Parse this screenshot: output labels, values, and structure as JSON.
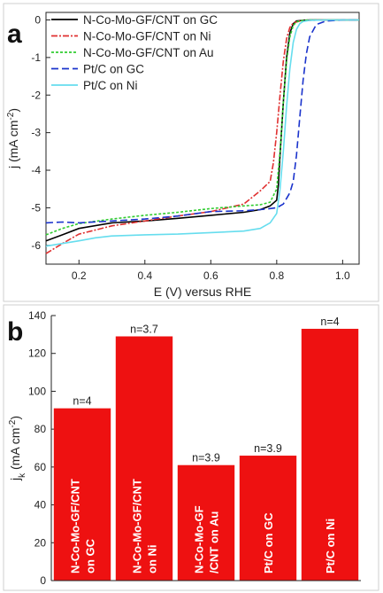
{
  "chart_data": [
    {
      "panel": "a",
      "type": "line",
      "xlabel": "E (V) versus RHE",
      "ylabel_main": "j (mA cm",
      "ylabel_sup": "-2",
      "ylabel_end": ")",
      "xlim": [
        0.1,
        1.05
      ],
      "ylim": [
        -6.5,
        0.2
      ],
      "xticks": [
        0.2,
        0.4,
        0.6,
        0.8,
        1.0
      ],
      "xtick_labels": [
        "0.2",
        "0.4",
        "0.6",
        "0.8",
        "1.0"
      ],
      "yticks": [
        0,
        -1,
        -2,
        -3,
        -4,
        -5,
        -6
      ],
      "ytick_labels": [
        "0",
        "-1",
        "-2",
        "-3",
        "-4",
        "-5",
        "-6"
      ],
      "legend_position": "top-left",
      "series": [
        {
          "name": "N-Co-Mo-GF/CNT on GC",
          "color": "#000000",
          "dash": "",
          "x": [
            0.1,
            0.15,
            0.2,
            0.3,
            0.4,
            0.5,
            0.6,
            0.7,
            0.75,
            0.78,
            0.8,
            0.805,
            0.81,
            0.82,
            0.83,
            0.84,
            0.85,
            0.86,
            0.88,
            0.9,
            0.95,
            1.0,
            1.05
          ],
          "y": [
            -5.88,
            -5.72,
            -5.55,
            -5.4,
            -5.35,
            -5.28,
            -5.2,
            -5.12,
            -5.05,
            -4.95,
            -4.8,
            -4.4,
            -3.6,
            -2.2,
            -1.0,
            -0.35,
            -0.1,
            -0.03,
            -0.01,
            0,
            0,
            0,
            0
          ]
        },
        {
          "name": "N-Co-Mo-GF/CNT on Ni",
          "color": "#e03030",
          "dash": "7 2 2 2",
          "x": [
            0.1,
            0.15,
            0.2,
            0.3,
            0.4,
            0.5,
            0.6,
            0.7,
            0.75,
            0.78,
            0.79,
            0.8,
            0.81,
            0.82,
            0.83,
            0.84,
            0.85,
            0.87,
            0.9,
            0.95,
            1.0,
            1.05
          ],
          "y": [
            -6.22,
            -5.95,
            -5.7,
            -5.48,
            -5.35,
            -5.22,
            -5.1,
            -4.9,
            -4.55,
            -4.3,
            -3.8,
            -3.0,
            -2.0,
            -1.1,
            -0.5,
            -0.2,
            -0.08,
            -0.03,
            -0.01,
            0,
            0,
            0
          ]
        },
        {
          "name": "N-Co-Mo-GF/CNT on Au",
          "color": "#30cc30",
          "dash": "3 2",
          "x": [
            0.1,
            0.15,
            0.2,
            0.3,
            0.4,
            0.5,
            0.6,
            0.7,
            0.75,
            0.78,
            0.8,
            0.81,
            0.82,
            0.83,
            0.84,
            0.85,
            0.86,
            0.88,
            0.9,
            0.95,
            1.0,
            1.05
          ],
          "y": [
            -5.72,
            -5.55,
            -5.42,
            -5.3,
            -5.2,
            -5.12,
            -5.02,
            -4.95,
            -4.92,
            -4.85,
            -4.5,
            -3.5,
            -2.2,
            -1.1,
            -0.45,
            -0.15,
            -0.05,
            -0.01,
            0,
            0,
            0,
            0
          ]
        },
        {
          "name": "Pt/C on GC",
          "color": "#1a33cc",
          "dash": "8 4",
          "x": [
            0.1,
            0.15,
            0.2,
            0.3,
            0.4,
            0.5,
            0.6,
            0.7,
            0.75,
            0.78,
            0.8,
            0.82,
            0.84,
            0.85,
            0.86,
            0.87,
            0.88,
            0.89,
            0.9,
            0.92,
            0.95,
            1.0,
            1.05
          ],
          "y": [
            -5.4,
            -5.38,
            -5.4,
            -5.35,
            -5.3,
            -5.22,
            -5.1,
            -5.08,
            -5.05,
            -5.02,
            -5.0,
            -4.9,
            -4.6,
            -4.3,
            -3.6,
            -2.6,
            -1.6,
            -0.9,
            -0.45,
            -0.12,
            -0.03,
            0,
            0
          ]
        },
        {
          "name": "Pt/C on Ni",
          "color": "#66ddee",
          "dash": "",
          "x": [
            0.1,
            0.15,
            0.2,
            0.25,
            0.3,
            0.4,
            0.5,
            0.6,
            0.7,
            0.75,
            0.78,
            0.8,
            0.81,
            0.82,
            0.83,
            0.84,
            0.85,
            0.86,
            0.87,
            0.88,
            0.9,
            0.95,
            1.0,
            1.05
          ],
          "y": [
            -6.02,
            -5.95,
            -5.88,
            -5.8,
            -5.75,
            -5.72,
            -5.7,
            -5.66,
            -5.62,
            -5.55,
            -5.4,
            -5.15,
            -4.5,
            -3.5,
            -2.3,
            -1.3,
            -0.6,
            -0.25,
            -0.1,
            -0.04,
            -0.01,
            0,
            0,
            0
          ]
        }
      ]
    },
    {
      "panel": "b",
      "type": "bar",
      "ylabel_main": "j",
      "ylabel_sub": "k",
      "ylabel_rest": " (mA cm",
      "ylabel_sup": "-2",
      "ylabel_end": ")",
      "ylim": [
        0,
        140
      ],
      "yticks": [
        0,
        20,
        40,
        60,
        80,
        100,
        120,
        140
      ],
      "ytick_labels": [
        "0",
        "20",
        "40",
        "60",
        "80",
        "100",
        "120",
        "140"
      ],
      "bar_color": "#ee1111",
      "categories": [
        [
          "N-Co-Mo-GF/CNT",
          "on GC"
        ],
        [
          "N-Co-Mo-GF/CNT",
          "on Ni"
        ],
        [
          "N-Co-Mo-GF",
          "/CNT on Au"
        ],
        [
          "Pt/C on GC"
        ],
        [
          "Pt/C on Ni"
        ]
      ],
      "values": [
        91,
        129,
        61,
        66,
        133
      ],
      "annotations": [
        "n=4",
        "n=3.7",
        "n=3.9",
        "n=3.9",
        "n=4"
      ]
    }
  ]
}
